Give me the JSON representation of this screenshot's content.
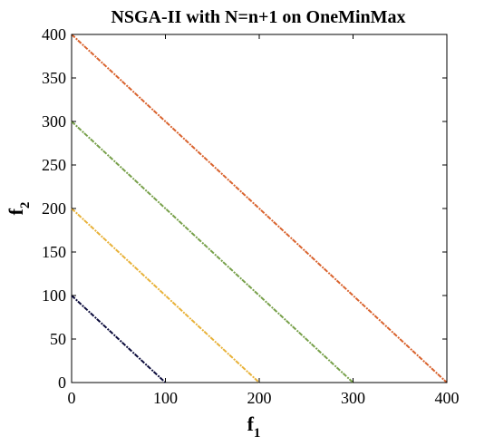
{
  "chart_data": {
    "type": "scatter",
    "title": "NSGA-II with N=n+1 on OneMinMax",
    "xlabel": {
      "main": "f",
      "sub": "1"
    },
    "ylabel": {
      "main": "f",
      "sub": "2"
    },
    "xlim": [
      0,
      400
    ],
    "ylim": [
      0,
      400
    ],
    "xticks": [
      "0",
      "100",
      "200",
      "300",
      "400"
    ],
    "yticks": [
      "0",
      "50",
      "100",
      "150",
      "200",
      "250",
      "300",
      "350",
      "400"
    ],
    "grid": false,
    "series": [
      {
        "color": "#0b0b3b",
        "x": [
          0,
          100
        ],
        "y": [
          100,
          0
        ]
      },
      {
        "color": "#e8b23a",
        "x": [
          0,
          200
        ],
        "y": [
          200,
          0
        ]
      },
      {
        "color": "#77a04a",
        "x": [
          0,
          300
        ],
        "y": [
          300,
          0
        ]
      },
      {
        "color": "#d9632e",
        "x": [
          0,
          400
        ],
        "y": [
          400,
          0
        ]
      }
    ]
  }
}
